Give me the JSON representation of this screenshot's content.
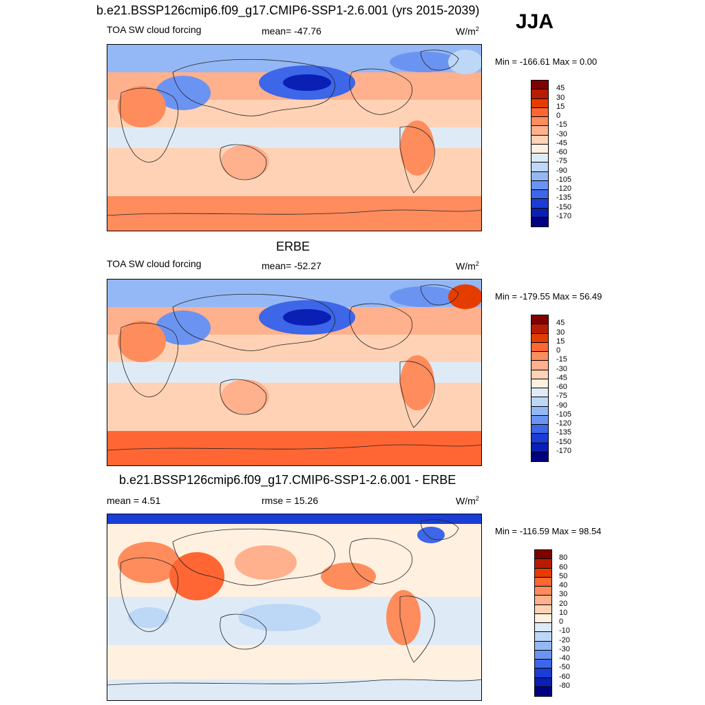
{
  "header": {
    "title": "b.e21.BSSP126cmip6.f09_g17.CMIP6-SSP1-2.6.001 (yrs 2015-2039)",
    "season": "JJA"
  },
  "panels": [
    {
      "title": "",
      "left_label": "TOA SW cloud forcing",
      "center_label": "mean= -47.76",
      "units": "W/m",
      "units_exp": "2",
      "minmax": "Min = -166.61 Max =   0.00",
      "colorbar": {
        "labels": [
          "45",
          "30",
          "15",
          "0",
          "-15",
          "-30",
          "-45",
          "-60",
          "-75",
          "-90",
          "-105",
          "-120",
          "-135",
          "-150",
          "-170"
        ],
        "colors": [
          "#800000",
          "#b81c00",
          "#e53d00",
          "#ff6633",
          "#ff8c5c",
          "#ffb08c",
          "#ffd2b5",
          "#fff0e0",
          "#deebf7",
          "#bdd7f7",
          "#94b8f5",
          "#6b94f2",
          "#3d66e8",
          "#1a3dd6",
          "#0a1fb3",
          "#000080"
        ]
      }
    },
    {
      "title": "ERBE",
      "left_label": "TOA SW cloud forcing",
      "center_label": "mean= -52.27",
      "units": "W/m",
      "units_exp": "2",
      "minmax": "Min = -179.55 Max =  56.49",
      "colorbar": {
        "labels": [
          "45",
          "30",
          "15",
          "0",
          "-15",
          "-30",
          "-45",
          "-60",
          "-75",
          "-90",
          "-105",
          "-120",
          "-135",
          "-150",
          "-170"
        ],
        "colors": [
          "#800000",
          "#b81c00",
          "#e53d00",
          "#ff6633",
          "#ff8c5c",
          "#ffb08c",
          "#ffd2b5",
          "#fff0e0",
          "#deebf7",
          "#bdd7f7",
          "#94b8f5",
          "#6b94f2",
          "#3d66e8",
          "#1a3dd6",
          "#0a1fb3",
          "#000080"
        ]
      }
    },
    {
      "title": "b.e21.BSSP126cmip6.f09_g17.CMIP6-SSP1-2.6.001 - ERBE",
      "left_label": "mean =   4.51",
      "center_label": "rmse =  15.26",
      "units": "W/m",
      "units_exp": "2",
      "minmax": "Min = -116.59 Max =  98.54",
      "colorbar": {
        "labels": [
          "80",
          "60",
          "50",
          "40",
          "30",
          "20",
          "10",
          "0",
          "-10",
          "-20",
          "-30",
          "-40",
          "-50",
          "-60",
          "-80"
        ],
        "colors": [
          "#800000",
          "#b81c00",
          "#e53d00",
          "#ff6633",
          "#ff8c5c",
          "#ffb08c",
          "#ffd2b5",
          "#fff0e0",
          "#deebf7",
          "#bdd7f7",
          "#94b8f5",
          "#6b94f2",
          "#3d66e8",
          "#1a3dd6",
          "#0a1fb3",
          "#000080"
        ]
      }
    }
  ]
}
